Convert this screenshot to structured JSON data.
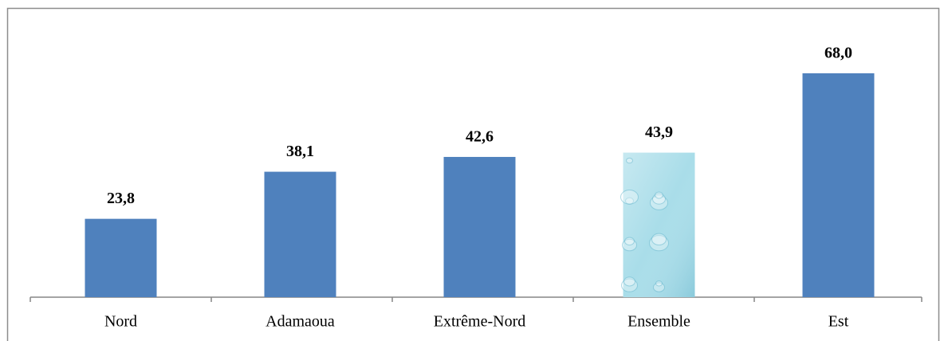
{
  "chart_data": {
    "type": "bar",
    "categories": [
      "Nord",
      "Adamaoua",
      "Extrême-Nord",
      "Ensemble",
      "Est"
    ],
    "values": [
      23.8,
      38.1,
      42.6,
      43.9,
      68.0
    ],
    "value_labels": [
      "23,8",
      "38,1",
      "42,6",
      "43,9",
      "68,0"
    ],
    "colors": [
      "#4f81bd",
      "#4f81bd",
      "#4f81bd",
      "#a9dde9",
      "#4f81bd"
    ]
  }
}
